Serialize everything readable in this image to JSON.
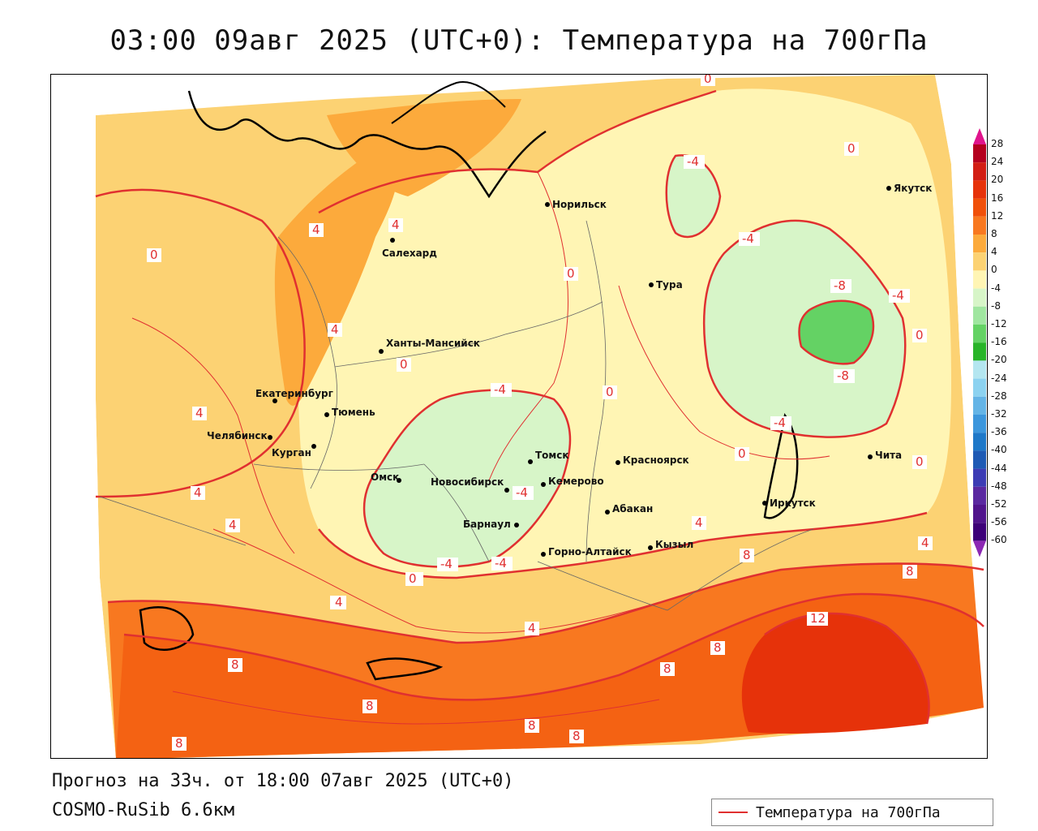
{
  "header": {
    "title": "03:00 09авг 2025 (UTC+0): Температура на 700гПа"
  },
  "footer": {
    "forecast": "Прогноз на 33ч. от 18:00 07авг 2025 (UTC+0)",
    "model": "COSMO-RuSib 6.6км"
  },
  "legend": {
    "line_label": "Температура на 700гПа",
    "line_color": "#e03030"
  },
  "colorbar": {
    "labels": [
      "28",
      "24",
      "20",
      "16",
      "12",
      "8",
      "4",
      "0",
      "-4",
      "-8",
      "-12",
      "-16",
      "-20",
      "-24",
      "-28",
      "-32",
      "-36",
      "-40",
      "-44",
      "-48",
      "-52",
      "-56",
      "-60"
    ],
    "colors": [
      "#b4001e",
      "#d21e14",
      "#e6320a",
      "#f0500a",
      "#f87820",
      "#fcaa3c",
      "#fcd273",
      "#fff5b4",
      "#d7f5c8",
      "#a0e6a0",
      "#64d264",
      "#28b428",
      "#b4e6f0",
      "#8cd2f0",
      "#64b4e6",
      "#3c96dc",
      "#1e78c8",
      "#1e5ab4",
      "#3c3cb4",
      "#5a28a0",
      "#50148c",
      "#3c0078"
    ]
  },
  "cities": [
    {
      "name": "Норильск"
    },
    {
      "name": "Якутск"
    },
    {
      "name": "Салехард"
    },
    {
      "name": "Тура"
    },
    {
      "name": "Ханты-Мансийск"
    },
    {
      "name": "Екатеринбург"
    },
    {
      "name": "Тюмень"
    },
    {
      "name": "Челябинск"
    },
    {
      "name": "Курган"
    },
    {
      "name": "Омск"
    },
    {
      "name": "Томск"
    },
    {
      "name": "Красноярск"
    },
    {
      "name": "Новосибирск"
    },
    {
      "name": "Кемерово"
    },
    {
      "name": "Абакан"
    },
    {
      "name": "Иркутск"
    },
    {
      "name": "Барнаул"
    },
    {
      "name": "Кызыл"
    },
    {
      "name": "Горно-Алтайск"
    },
    {
      "name": "Чита"
    }
  ],
  "isotherm_labels": [
    "0",
    "-4",
    "0",
    "4",
    "0",
    "4",
    "4",
    "0",
    "-4",
    "0",
    "-8",
    "-4",
    "0",
    "4",
    "-4",
    "0",
    "-8",
    "-4",
    "4",
    "4",
    "-4",
    "0",
    "0",
    "-4",
    "4",
    "0",
    "-4",
    "4",
    "4",
    "8",
    "8",
    "0",
    "4",
    "4",
    "8",
    "12",
    "8",
    "8",
    "8",
    "8",
    "8",
    "8"
  ]
}
